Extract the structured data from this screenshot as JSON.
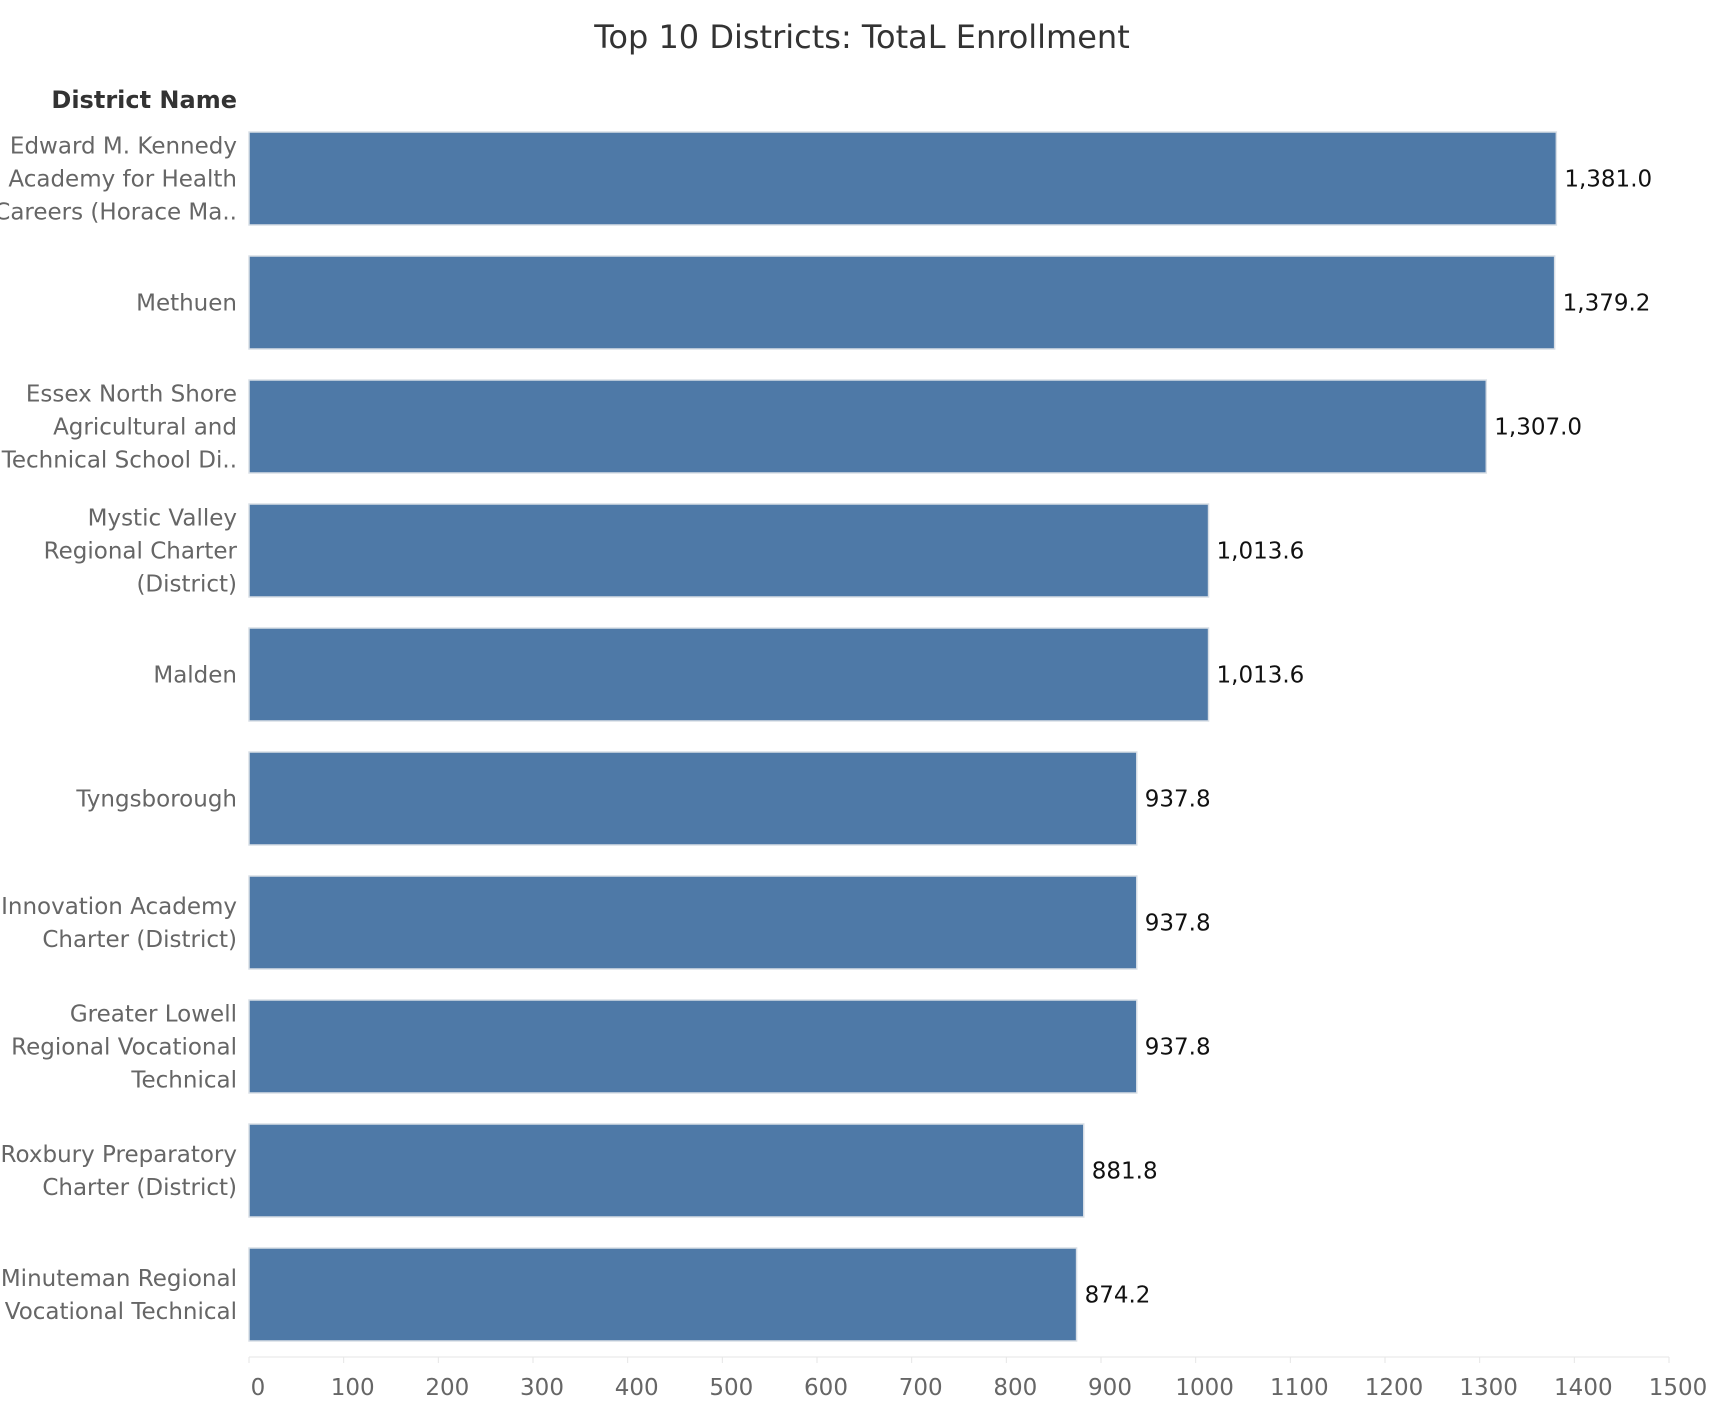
{
  "chart_data": {
    "type": "bar",
    "orientation": "horizontal",
    "title": "Top 10 Districts: TotaL Enrollment",
    "row_header": "District Name",
    "categories": [
      [
        "Edward M. Kennedy",
        "Academy for Health",
        "Careers (Horace Ma.."
      ],
      [
        "Methuen"
      ],
      [
        "Essex North Shore",
        "Agricultural and",
        "Technical School Di.."
      ],
      [
        "Mystic Valley",
        "Regional Charter",
        "(District)"
      ],
      [
        "Malden"
      ],
      [
        "Tyngsborough"
      ],
      [
        "Innovation Academy",
        "Charter (District)"
      ],
      [
        "Greater Lowell",
        "Regional Vocational",
        "Technical"
      ],
      [
        "Roxbury Preparatory",
        "Charter (District)"
      ],
      [
        "Minuteman Regional",
        "Vocational Technical"
      ]
    ],
    "values": [
      1381.0,
      1379.2,
      1307.0,
      1013.6,
      1013.6,
      937.8,
      937.8,
      937.8,
      881.8,
      874.2
    ],
    "value_labels": [
      "1,381.0",
      "1,379.2",
      "1,307.0",
      "1,013.6",
      "1,013.6",
      "937.8",
      "937.8",
      "937.8",
      "881.8",
      "874.2"
    ],
    "xlim": [
      0,
      1500
    ],
    "x_ticks": [
      0,
      100,
      200,
      300,
      400,
      500,
      600,
      700,
      800,
      900,
      1000,
      1100,
      1200,
      1300,
      1400,
      1500
    ],
    "grid": false,
    "colors": {
      "bar": "#4e79a7"
    }
  }
}
